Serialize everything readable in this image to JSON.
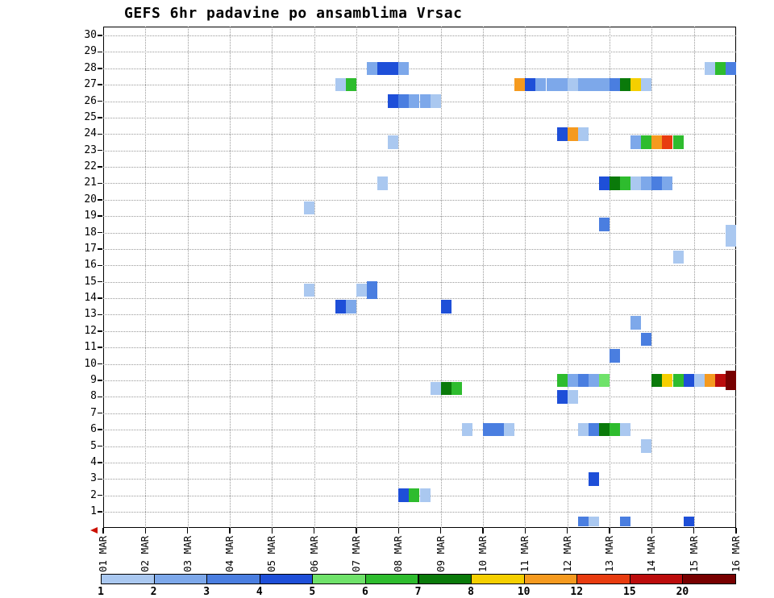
{
  "chart_data": {
    "type": "heatmap",
    "title": "GEFS 6hr padavine po ansamblima Vrsac",
    "x": {
      "tick_labels": [
        "01 MAR",
        "02 MAR",
        "03 MAR",
        "04 MAR",
        "05 MAR",
        "06 MAR",
        "07 MAR",
        "08 MAR",
        "09 MAR",
        "10 MAR",
        "11 MAR",
        "12 MAR",
        "13 MAR",
        "14 MAR",
        "15 MAR",
        "16 MAR"
      ],
      "slots_per_day": 4
    },
    "y": {
      "min": 1,
      "max": 30,
      "tick_step": 1
    },
    "legend": {
      "tick_labels": [
        "1",
        "2",
        "3",
        "4",
        "5",
        "6",
        "7",
        "8",
        "10",
        "12",
        "15",
        "20"
      ],
      "colors": [
        "#aac8f0",
        "#7da8ea",
        "#4a7ee0",
        "#1e4fd8",
        "#6fe26a",
        "#2ebc2e",
        "#0a7a0a",
        "#f5cf00",
        "#f59a1f",
        "#e83c10",
        "#bc0c0c",
        "#780000"
      ]
    },
    "cells": [
      {
        "m": 28,
        "s": 25,
        "v": 2
      },
      {
        "m": 28,
        "s": 26,
        "v": 4
      },
      {
        "m": 28,
        "s": 27,
        "v": 4
      },
      {
        "m": 28,
        "s": 28,
        "v": 2
      },
      {
        "m": 28,
        "s": 57,
        "v": 1
      },
      {
        "m": 28,
        "s": 58,
        "v": 6
      },
      {
        "m": 28,
        "s": 59,
        "v": 3
      },
      {
        "m": 27,
        "s": 22,
        "v": 1
      },
      {
        "m": 27,
        "s": 23,
        "v": 6
      },
      {
        "m": 27,
        "s": 39,
        "v": 9
      },
      {
        "m": 27,
        "s": 40,
        "v": 4
      },
      {
        "m": 27,
        "s": 41,
        "v": 2
      },
      {
        "m": 27,
        "s": 42,
        "v": 2
      },
      {
        "m": 27,
        "s": 43,
        "v": 2
      },
      {
        "m": 27,
        "s": 44,
        "v": 1
      },
      {
        "m": 27,
        "s": 45,
        "v": 2
      },
      {
        "m": 27,
        "s": 46,
        "v": 2
      },
      {
        "m": 27,
        "s": 47,
        "v": 2
      },
      {
        "m": 27,
        "s": 48,
        "v": 3
      },
      {
        "m": 27,
        "s": 49,
        "v": 7
      },
      {
        "m": 27,
        "s": 50,
        "v": 8
      },
      {
        "m": 27,
        "s": 51,
        "v": 1
      },
      {
        "m": 26,
        "s": 27,
        "v": 4
      },
      {
        "m": 26,
        "s": 28,
        "v": 3
      },
      {
        "m": 26,
        "s": 29,
        "v": 2
      },
      {
        "m": 26,
        "s": 30,
        "v": 2
      },
      {
        "m": 26,
        "s": 31,
        "v": 1
      },
      {
        "m": 23.5,
        "s": 27,
        "v": 1
      },
      {
        "m": 24,
        "s": 43,
        "v": 4
      },
      {
        "m": 24,
        "s": 44,
        "v": 9
      },
      {
        "m": 24,
        "s": 45,
        "v": 1
      },
      {
        "m": 23.5,
        "s": 50,
        "v": 2
      },
      {
        "m": 23.5,
        "s": 51,
        "v": 6
      },
      {
        "m": 23.5,
        "s": 52,
        "v": 9
      },
      {
        "m": 23.5,
        "s": 53,
        "v": 10
      },
      {
        "m": 23.5,
        "s": 54,
        "v": 6
      },
      {
        "m": 21,
        "s": 26,
        "v": 1
      },
      {
        "m": 21,
        "s": 47,
        "v": 4
      },
      {
        "m": 21,
        "s": 48,
        "v": 7
      },
      {
        "m": 21,
        "s": 49,
        "v": 6
      },
      {
        "m": 21,
        "s": 50,
        "v": 1
      },
      {
        "m": 21,
        "s": 51,
        "v": 2
      },
      {
        "m": 21,
        "s": 52,
        "v": 3
      },
      {
        "m": 21,
        "s": 53,
        "v": 2
      },
      {
        "m": 19.5,
        "s": 19,
        "v": 1
      },
      {
        "m": 18.5,
        "s": 47,
        "v": 3
      },
      {
        "m": 17.8,
        "s": 59,
        "v": 1,
        "h": 1.6
      },
      {
        "m": 16.5,
        "s": 54,
        "v": 1
      },
      {
        "m": 14.5,
        "s": 19,
        "v": 1
      },
      {
        "m": 14.5,
        "s": 24,
        "v": 1
      },
      {
        "m": 14.5,
        "s": 25,
        "v": 3,
        "h": 1.3
      },
      {
        "m": 13.5,
        "s": 22,
        "v": 4
      },
      {
        "m": 13.5,
        "s": 23,
        "v": 2
      },
      {
        "m": 13.5,
        "s": 32,
        "v": 4
      },
      {
        "m": 12.5,
        "s": 50,
        "v": 2
      },
      {
        "m": 11.5,
        "s": 51,
        "v": 3
      },
      {
        "m": 10.5,
        "s": 48,
        "v": 3
      },
      {
        "m": 9,
        "s": 43,
        "v": 6
      },
      {
        "m": 9,
        "s": 44,
        "v": 2
      },
      {
        "m": 9,
        "s": 45,
        "v": 3
      },
      {
        "m": 9,
        "s": 46,
        "v": 2
      },
      {
        "m": 9,
        "s": 47,
        "v": 5
      },
      {
        "m": 8,
        "s": 43,
        "v": 4
      },
      {
        "m": 8,
        "s": 44,
        "v": 1
      },
      {
        "m": 9,
        "s": 52,
        "v": 7
      },
      {
        "m": 9,
        "s": 53,
        "v": 8
      },
      {
        "m": 9,
        "s": 54,
        "v": 6
      },
      {
        "m": 9,
        "s": 55,
        "v": 4
      },
      {
        "m": 9,
        "s": 56,
        "v": 1
      },
      {
        "m": 9,
        "s": 57,
        "v": 9
      },
      {
        "m": 9,
        "s": 58,
        "v": 11
      },
      {
        "m": 9,
        "s": 59,
        "v": 12,
        "h": 1.5
      },
      {
        "m": 8.5,
        "s": 31,
        "v": 1
      },
      {
        "m": 8.5,
        "s": 32,
        "v": 7
      },
      {
        "m": 8.5,
        "s": 33,
        "v": 6
      },
      {
        "m": 6,
        "s": 34,
        "v": 1
      },
      {
        "m": 6,
        "s": 36,
        "v": 3
      },
      {
        "m": 6,
        "s": 37,
        "v": 3
      },
      {
        "m": 6,
        "s": 38,
        "v": 1
      },
      {
        "m": 6,
        "s": 45,
        "v": 1
      },
      {
        "m": 6,
        "s": 46,
        "v": 3
      },
      {
        "m": 6,
        "s": 47,
        "v": 7
      },
      {
        "m": 6,
        "s": 48,
        "v": 6
      },
      {
        "m": 6,
        "s": 49,
        "v": 1
      },
      {
        "m": 5,
        "s": 51,
        "v": 1
      },
      {
        "m": 3,
        "s": 46,
        "v": 4
      },
      {
        "m": 2,
        "s": 28,
        "v": 4
      },
      {
        "m": 2,
        "s": 29,
        "v": 6
      },
      {
        "m": 2,
        "s": 30,
        "v": 1
      },
      {
        "m": 0.4,
        "s": 45,
        "v": 3,
        "h": 0.7
      },
      {
        "m": 0.4,
        "s": 46,
        "v": 1,
        "h": 0.7
      },
      {
        "m": 0.4,
        "s": 49,
        "v": 3,
        "h": 0.7
      },
      {
        "m": 0.4,
        "s": 55,
        "v": 4,
        "h": 0.7
      }
    ]
  }
}
